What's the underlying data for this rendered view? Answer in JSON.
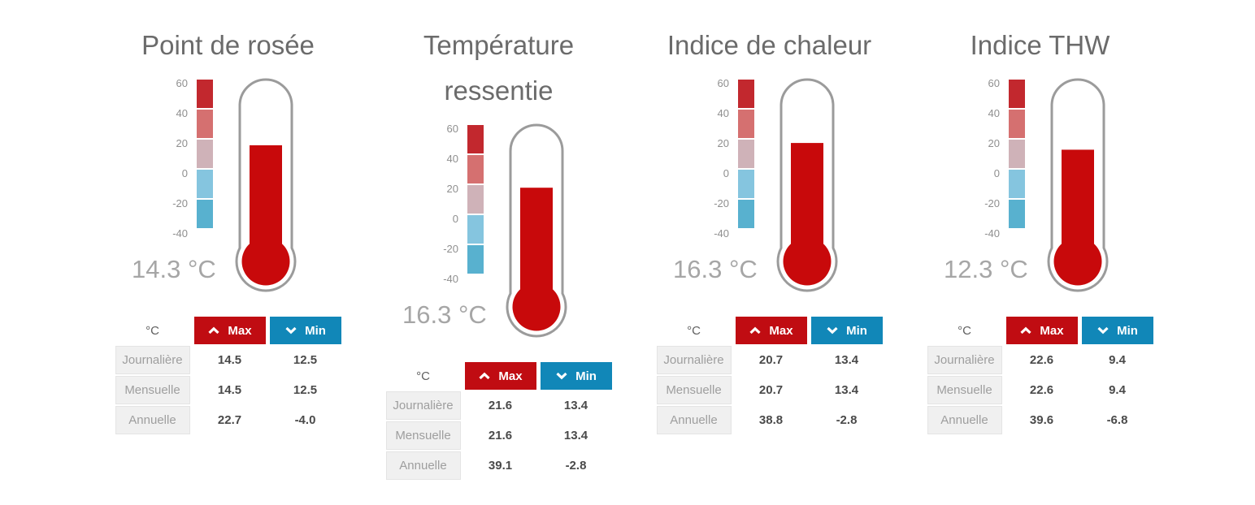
{
  "scale": {
    "ticks": [
      "60",
      "40",
      "20",
      "0",
      "-20",
      "-40"
    ],
    "block_colors": [
      "#c2282e",
      "#d57070",
      "#cfb2b8",
      "#85c5df",
      "#58b1cf"
    ]
  },
  "thermometer": {
    "fill_color": "#c8090b",
    "outline_color": "#9b9b9b",
    "scale_range": [
      -40,
      60
    ]
  },
  "table_labels": {
    "unit": "°C",
    "max": "Max",
    "min": "Min",
    "max_color": "#c00c12",
    "min_color": "#1187b8",
    "max_icon": "chevron-up-icon",
    "min_icon": "chevron-down-icon"
  },
  "gauges": [
    {
      "title": "Point de rosée",
      "reading": "14.3 °C",
      "fill_value": 19,
      "rows": [
        {
          "label": "Journalière",
          "max": "14.5",
          "min": "12.5"
        },
        {
          "label": "Mensuelle",
          "max": "14.5",
          "min": "12.5"
        },
        {
          "label": "Annuelle",
          "max": "22.7",
          "min": "-4.0"
        }
      ]
    },
    {
      "title": "Température ressentie",
      "reading": "16.3 °C",
      "fill_value": 21,
      "rows": [
        {
          "label": "Journalière",
          "max": "21.6",
          "min": "13.4"
        },
        {
          "label": "Mensuelle",
          "max": "21.6",
          "min": "13.4"
        },
        {
          "label": "Annuelle",
          "max": "39.1",
          "min": "-2.8"
        }
      ]
    },
    {
      "title": "Indice de chaleur",
      "reading": "16.3 °C",
      "fill_value": 20.5,
      "rows": [
        {
          "label": "Journalière",
          "max": "20.7",
          "min": "13.4"
        },
        {
          "label": "Mensuelle",
          "max": "20.7",
          "min": "13.4"
        },
        {
          "label": "Annuelle",
          "max": "38.8",
          "min": "-2.8"
        }
      ]
    },
    {
      "title": "Indice THW",
      "reading": "12.3 °C",
      "fill_value": 16,
      "rows": [
        {
          "label": "Journalière",
          "max": "22.6",
          "min": "9.4"
        },
        {
          "label": "Mensuelle",
          "max": "22.6",
          "min": "9.4"
        },
        {
          "label": "Annuelle",
          "max": "39.6",
          "min": "-6.8"
        }
      ]
    }
  ],
  "chart_data": [
    {
      "type": "gauge",
      "title": "Point de rosée",
      "unit": "°C",
      "current_value": 14.3,
      "scale_ticks": [
        60,
        40,
        20,
        0,
        -20,
        -40
      ],
      "scale_range": [
        -40,
        60
      ],
      "table": {
        "columns": [
          "Max",
          "Min"
        ],
        "rows": [
          {
            "period": "Journalière",
            "max": 14.5,
            "min": 12.5
          },
          {
            "period": "Mensuelle",
            "max": 14.5,
            "min": 12.5
          },
          {
            "period": "Annuelle",
            "max": 22.7,
            "min": -4.0
          }
        ]
      }
    },
    {
      "type": "gauge",
      "title": "Température ressentie",
      "unit": "°C",
      "current_value": 16.3,
      "scale_ticks": [
        60,
        40,
        20,
        0,
        -20,
        -40
      ],
      "scale_range": [
        -40,
        60
      ],
      "table": {
        "columns": [
          "Max",
          "Min"
        ],
        "rows": [
          {
            "period": "Journalière",
            "max": 21.6,
            "min": 13.4
          },
          {
            "period": "Mensuelle",
            "max": 21.6,
            "min": 13.4
          },
          {
            "period": "Annuelle",
            "max": 39.1,
            "min": -2.8
          }
        ]
      }
    },
    {
      "type": "gauge",
      "title": "Indice de chaleur",
      "unit": "°C",
      "current_value": 16.3,
      "scale_ticks": [
        60,
        40,
        20,
        0,
        -20,
        -40
      ],
      "scale_range": [
        -40,
        60
      ],
      "table": {
        "columns": [
          "Max",
          "Min"
        ],
        "rows": [
          {
            "period": "Journalière",
            "max": 20.7,
            "min": 13.4
          },
          {
            "period": "Mensuelle",
            "max": 20.7,
            "min": 13.4
          },
          {
            "period": "Annuelle",
            "max": 38.8,
            "min": -2.8
          }
        ]
      }
    },
    {
      "type": "gauge",
      "title": "Indice THW",
      "unit": "°C",
      "current_value": 12.3,
      "scale_ticks": [
        60,
        40,
        20,
        0,
        -20,
        -40
      ],
      "scale_range": [
        -40,
        60
      ],
      "table": {
        "columns": [
          "Max",
          "Min"
        ],
        "rows": [
          {
            "period": "Journalière",
            "max": 22.6,
            "min": 9.4
          },
          {
            "period": "Mensuelle",
            "max": 22.6,
            "min": 9.4
          },
          {
            "period": "Annuelle",
            "max": 39.6,
            "min": -6.8
          }
        ]
      }
    }
  ]
}
